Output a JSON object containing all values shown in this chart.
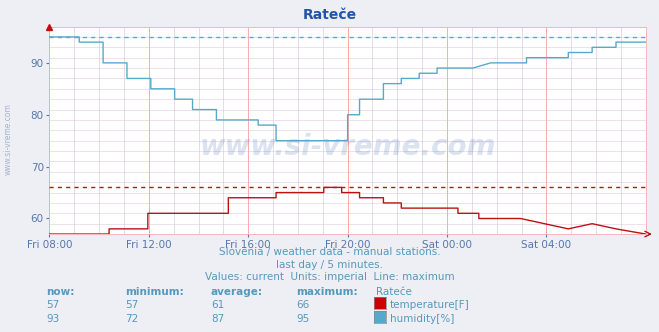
{
  "title": "Rateče",
  "title_color": "#2255aa",
  "background_color": "#eeeef5",
  "plot_bg_color": "#ffffff",
  "grid_color_major": "#ffaaaa",
  "grid_color_minor": "#ddccdd",
  "x_tick_labels": [
    "Fri 08:00",
    "Fri 12:00",
    "Fri 16:00",
    "Fri 20:00",
    "Sat 00:00",
    "Sat 04:00"
  ],
  "x_tick_positions": [
    0.0,
    0.1667,
    0.3333,
    0.5,
    0.6667,
    0.8333
  ],
  "ylim_low": 57,
  "ylim_high": 97,
  "yticks": [
    60,
    70,
    80,
    90
  ],
  "tick_label_color": "#5577aa",
  "subtitle_lines": [
    "Slovenia / weather data - manual stations.",
    "last day / 5 minutes.",
    "Values: current  Units: imperial  Line: maximum"
  ],
  "subtitle_color": "#5599bb",
  "watermark": "www.si-vreme.com",
  "watermark_color": "#3366aa",
  "temp_color": "#bb1111",
  "humidity_color": "#55aacc",
  "temp_max": 66,
  "humidity_max": 95,
  "legend_title": "Rateče",
  "legend_now_temp": 57,
  "legend_min_temp": 57,
  "legend_avg_temp": 61,
  "legend_max_temp": 66,
  "legend_now_hum": 93,
  "legend_min_hum": 72,
  "legend_avg_hum": 87,
  "legend_max_hum": 95,
  "temp_color_swatch": "#cc0000",
  "hum_color_swatch": "#55aacc",
  "left_label": "www.si-vreme.com",
  "left_label_color": "#8899bb"
}
